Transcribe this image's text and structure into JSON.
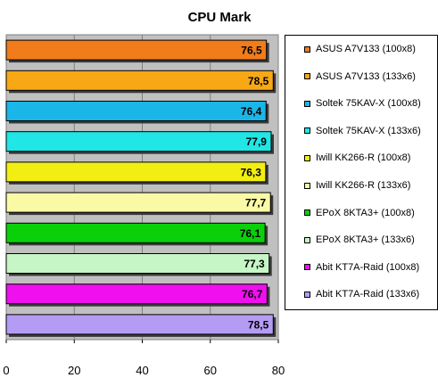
{
  "chart_data": {
    "type": "bar",
    "orientation": "horizontal",
    "title": "CPU Mark",
    "xlabel": "",
    "ylabel": "",
    "xlim": [
      0,
      80
    ],
    "x_ticks": [
      "0",
      "20",
      "40",
      "60",
      "80"
    ],
    "grid": true,
    "legend_position": "right",
    "series": [
      {
        "name": "ASUS A7V133 (100x8)",
        "value": 76.5,
        "label": "76,5",
        "color": "#f07c1c"
      },
      {
        "name": "ASUS A7V133 (133x6)",
        "value": 78.5,
        "label": "78,5",
        "color": "#f7a814"
      },
      {
        "name": "Soltek 75KAV-X (100x8)",
        "value": 76.4,
        "label": "76,4",
        "color": "#1bb6e8"
      },
      {
        "name": "Soltek 75KAV-X (133x6)",
        "value": 77.9,
        "label": "77,9",
        "color": "#20e6e6"
      },
      {
        "name": "Iwill KK266-R (100x8)",
        "value": 76.3,
        "label": "76,3",
        "color": "#f2ee12"
      },
      {
        "name": "Iwill KK266-R (133x6)",
        "value": 77.7,
        "label": "77,7",
        "color": "#fafaa6"
      },
      {
        "name": "EPoX 8KTA3+ (100x8)",
        "value": 76.1,
        "label": "76,1",
        "color": "#0ad00a"
      },
      {
        "name": "EPoX 8KTA3+ (133x6)",
        "value": 77.3,
        "label": "77,3",
        "color": "#c6f5c6"
      },
      {
        "name": "Abit KT7A-Raid (100x8)",
        "value": 76.7,
        "label": "76,7",
        "color": "#ee10ee"
      },
      {
        "name": "Abit KT7A-Raid (133x6)",
        "value": 78.5,
        "label": "78,5",
        "color": "#b49cf5"
      }
    ]
  }
}
